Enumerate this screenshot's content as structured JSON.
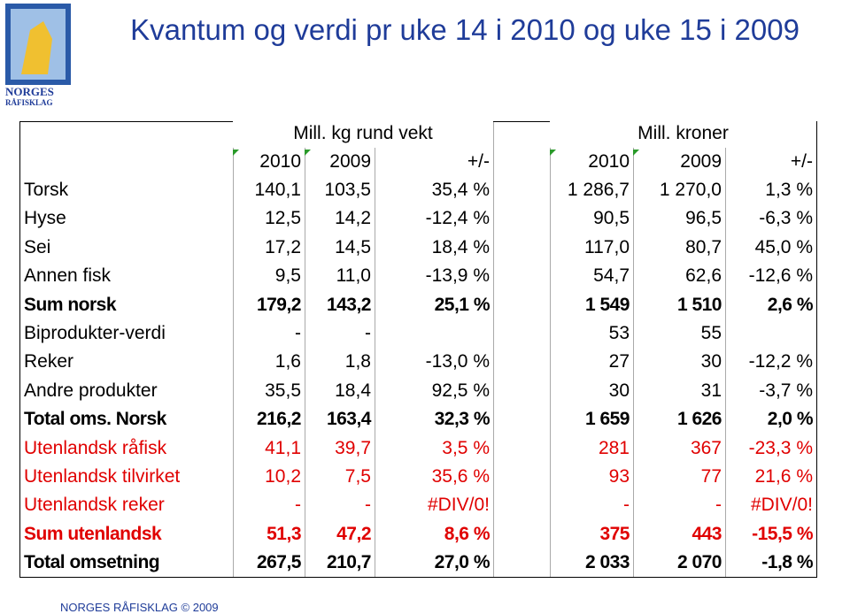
{
  "logo": {
    "line1": "NORGES",
    "line2": "RÅFISKLAG"
  },
  "header": {
    "title": "Kvantum og verdi pr uke 14 i 2010 og uke 15 i 2009"
  },
  "table": {
    "groups": [
      "Mill. kg rund vekt",
      "Mill. kroner"
    ],
    "columns": [
      "2010",
      "2009",
      "+/-",
      "2010",
      "2009",
      "+/-"
    ],
    "rows": [
      {
        "cells": [
          "Torsk",
          "140,1",
          "103,5",
          "35,4 %",
          "1 286,7",
          "1 270,0",
          "1,3 %"
        ]
      },
      {
        "cells": [
          "Hyse",
          "12,5",
          "14,2",
          "-12,4 %",
          "90,5",
          "96,5",
          "-6,3 %"
        ]
      },
      {
        "cells": [
          "Sei",
          "17,2",
          "14,5",
          "18,4 %",
          "117,0",
          "80,7",
          "45,0 %"
        ]
      },
      {
        "cells": [
          "Annen fisk",
          "9,5",
          "11,0",
          "-13,9 %",
          "54,7",
          "62,6",
          "-12,6 %"
        ]
      },
      {
        "cells": [
          "Sum norsk",
          "179,2",
          "143,2",
          "25,1 %",
          "1 549",
          "1 510",
          "2,6 %"
        ],
        "bold": true
      },
      {
        "cells": [
          "Biprodukter-verdi",
          "-",
          "-",
          null,
          "53",
          "55",
          null
        ]
      },
      {
        "cells": [
          "Reker",
          "1,6",
          "1,8",
          "-13,0 %",
          "27",
          "30",
          "-12,2 %"
        ]
      },
      {
        "cells": [
          "Andre produkter",
          "35,5",
          "18,4",
          "92,5 %",
          "30",
          "31",
          "-3,7 %"
        ]
      },
      {
        "cells": [
          "Total oms. Norsk",
          "216,2",
          "163,4",
          "32,3 %",
          "1 659",
          "1 626",
          "2,0 %"
        ],
        "bold": true
      },
      {
        "cells": [
          "Utenlandsk råfisk",
          "41,1",
          "39,7",
          "3,5 %",
          "281",
          "367",
          "-23,3 %"
        ],
        "color": "#e00000"
      },
      {
        "cells": [
          "Utenlandsk tilvirket",
          "10,2",
          "7,5",
          "35,6 %",
          "93",
          "77",
          "21,6 %"
        ],
        "color": "#e00000"
      },
      {
        "cells": [
          "Utenlandsk reker",
          "-",
          "-",
          "#DIV/0!",
          "-",
          "-",
          "#DIV/0!"
        ],
        "color": "#e00000"
      },
      {
        "cells": [
          "Sum utenlandsk",
          "51,3",
          "47,2",
          "8,6 %",
          "375",
          "443",
          "-15,5 %"
        ],
        "bold": true,
        "color": "#e00000"
      },
      {
        "cells": [
          "Total omsetning",
          "267,5",
          "210,7",
          "27,0 %",
          "2 033",
          "2 070",
          "-1,8 %"
        ],
        "bold": true
      }
    ]
  },
  "footer": {
    "text": "NORGES RÅFISKLAG © 2009"
  }
}
